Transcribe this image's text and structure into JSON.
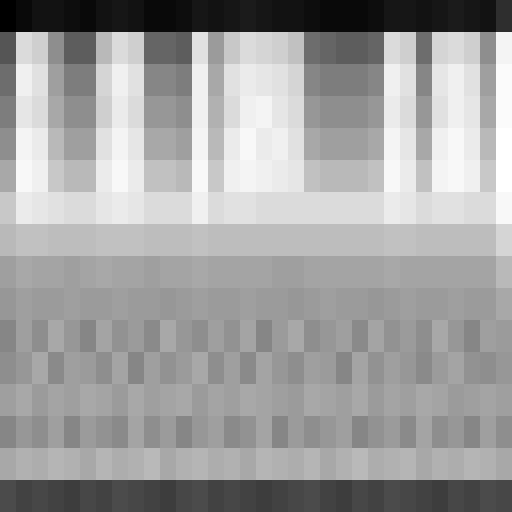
{
  "chart_data": {
    "type": "heatmap",
    "tick_labels": false,
    "cells": [
      [
        20,
        22,
        24,
        24,
        23,
        22,
        24,
        25,
        24,
        22,
        22,
        23,
        25,
        24,
        25,
        26,
        25,
        24,
        24,
        23,
        22,
        22,
        22,
        23,
        25,
        25,
        24,
        25,
        26,
        25,
        24,
        30
      ],
      [
        38,
        72,
        68,
        52,
        40,
        40,
        62,
        72,
        68,
        42,
        42,
        40,
        74,
        55,
        66,
        72,
        70,
        68,
        64,
        44,
        42,
        40,
        40,
        42,
        72,
        68,
        44,
        70,
        72,
        68,
        52,
        82
      ],
      [
        44,
        80,
        74,
        56,
        48,
        48,
        70,
        80,
        74,
        50,
        50,
        48,
        80,
        58,
        74,
        78,
        76,
        74,
        70,
        50,
        48,
        48,
        48,
        50,
        80,
        74,
        50,
        76,
        80,
        74,
        56,
        86
      ],
      [
        48,
        76,
        72,
        58,
        52,
        52,
        68,
        78,
        72,
        54,
        54,
        52,
        80,
        60,
        72,
        80,
        82,
        76,
        72,
        54,
        52,
        52,
        52,
        54,
        78,
        72,
        54,
        74,
        80,
        76,
        58,
        86
      ],
      [
        52,
        82,
        78,
        62,
        56,
        56,
        74,
        82,
        76,
        58,
        58,
        56,
        82,
        62,
        78,
        84,
        78,
        80,
        74,
        58,
        56,
        56,
        56,
        58,
        82,
        76,
        58,
        80,
        84,
        78,
        62,
        88
      ],
      [
        58,
        84,
        80,
        66,
        62,
        62,
        78,
        84,
        78,
        64,
        64,
        62,
        84,
        66,
        80,
        82,
        80,
        78,
        76,
        64,
        62,
        62,
        62,
        64,
        84,
        78,
        64,
        82,
        84,
        80,
        66,
        88
      ],
      [
        66,
        78,
        76,
        74,
        72,
        72,
        76,
        78,
        76,
        72,
        72,
        72,
        80,
        72,
        74,
        74,
        72,
        72,
        72,
        72,
        72,
        72,
        72,
        72,
        78,
        76,
        72,
        74,
        74,
        72,
        72,
        84
      ],
      [
        62,
        64,
        64,
        63,
        63,
        63,
        64,
        64,
        64,
        63,
        63,
        63,
        64,
        63,
        63,
        63,
        63,
        63,
        63,
        63,
        63,
        63,
        63,
        63,
        64,
        64,
        63,
        63,
        63,
        63,
        63,
        70
      ],
      [
        56,
        58,
        57,
        57,
        56,
        57,
        58,
        57,
        57,
        56,
        57,
        57,
        58,
        57,
        57,
        57,
        57,
        56,
        56,
        57,
        57,
        57,
        57,
        57,
        58,
        57,
        57,
        57,
        57,
        57,
        57,
        62
      ],
      [
        54,
        56,
        55,
        55,
        56,
        55,
        55,
        56,
        55,
        55,
        54,
        55,
        56,
        55,
        55,
        56,
        55,
        55,
        54,
        55,
        56,
        55,
        55,
        54,
        55,
        56,
        55,
        55,
        56,
        55,
        55,
        58
      ],
      [
        50,
        56,
        52,
        58,
        54,
        50,
        57,
        53,
        55,
        51,
        58,
        54,
        52,
        56,
        53,
        57,
        50,
        55,
        58,
        52,
        54,
        56,
        51,
        57,
        53,
        55,
        52,
        58,
        54,
        50,
        56,
        55
      ],
      [
        52,
        54,
        58,
        51,
        56,
        55,
        52,
        57,
        50,
        56,
        53,
        55,
        58,
        52,
        56,
        51,
        57,
        54,
        52,
        56,
        55,
        50,
        57,
        53,
        56,
        54,
        51,
        55,
        57,
        53,
        52,
        54
      ],
      [
        56,
        58,
        55,
        57,
        56,
        58,
        57,
        55,
        58,
        56,
        57,
        58,
        55,
        57,
        56,
        58,
        57,
        56,
        55,
        58,
        57,
        56,
        58,
        55,
        57,
        56,
        58,
        57,
        55,
        56,
        57,
        56
      ],
      [
        50,
        54,
        52,
        56,
        50,
        55,
        53,
        51,
        57,
        52,
        55,
        50,
        54,
        56,
        51,
        53,
        57,
        50,
        55,
        52,
        54,
        56,
        50,
        53,
        55,
        51,
        57,
        52,
        54,
        50,
        56,
        52
      ],
      [
        58,
        60,
        59,
        61,
        60,
        58,
        61,
        59,
        60,
        62,
        58,
        60,
        61,
        59,
        60,
        58,
        61,
        60,
        59,
        61,
        58,
        60,
        62,
        59,
        60,
        61,
        58,
        60,
        59,
        61,
        60,
        58
      ],
      [
        36,
        34,
        35,
        34,
        33,
        35,
        34,
        36,
        35,
        34,
        33,
        35,
        36,
        34,
        35,
        34,
        33,
        34,
        35,
        36,
        34,
        33,
        35,
        34,
        36,
        35,
        34,
        33,
        35,
        34,
        36,
        35
      ]
    ]
  }
}
